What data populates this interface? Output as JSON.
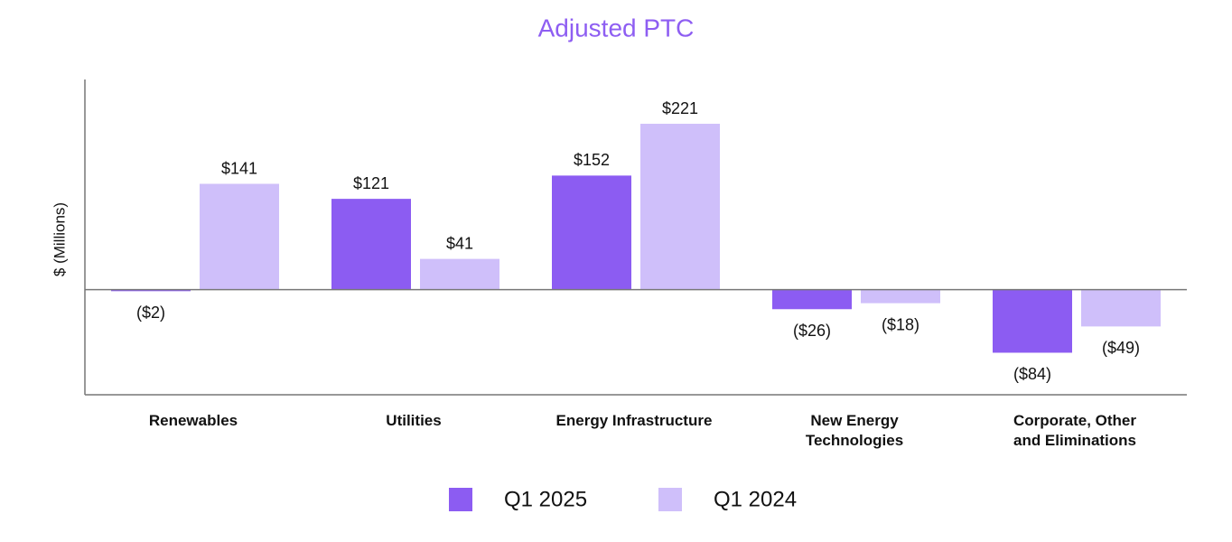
{
  "chart_data": {
    "type": "bar",
    "title": "Adjusted PTC",
    "y_label": "$ (Millions)",
    "categories": [
      "Renewables",
      "Utilities",
      "Energy Infrastructure",
      "New Energy\nTechnologies",
      "Corporate, Other\nand Eliminations"
    ],
    "series": [
      {
        "name": "Q1 2025",
        "color": "#8c5cf2",
        "values": [
          -2,
          121,
          152,
          -26,
          -84
        ],
        "value_labels": [
          "($2)",
          "$121",
          "$152",
          "($26)",
          "($84)"
        ]
      },
      {
        "name": "Q1 2024",
        "color": "#cfbffa",
        "values": [
          141,
          41,
          221,
          -18,
          -49
        ],
        "value_labels": [
          "$141",
          "$41",
          "$221",
          "($18)",
          "($49)"
        ]
      }
    ],
    "ylim": [
      -140,
      280
    ]
  }
}
